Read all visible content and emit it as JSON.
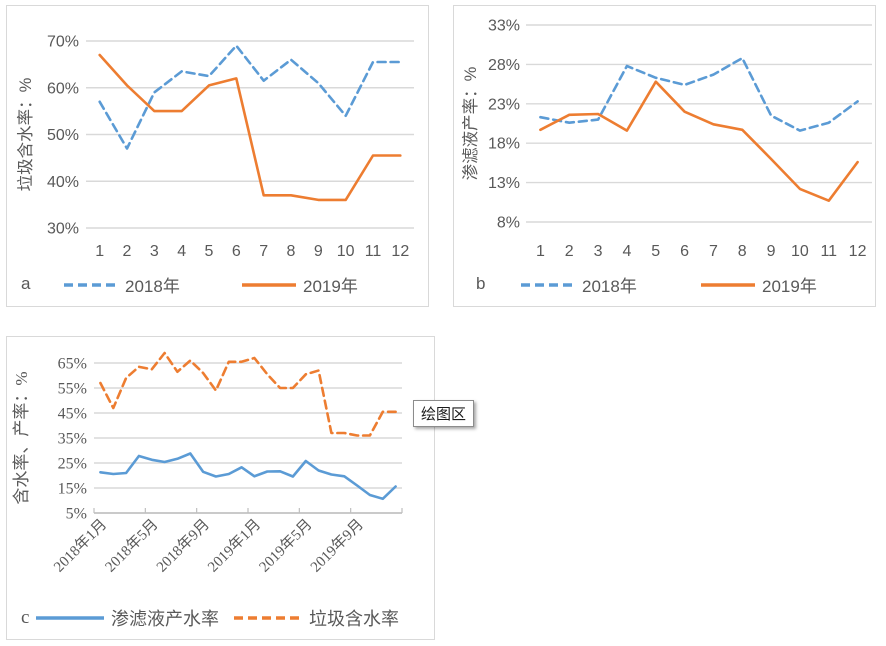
{
  "colors": {
    "blue": "#5B9BD5",
    "orange": "#ED7D31",
    "gridline": "#D9D9D9",
    "axis_line": "#BFBFBF",
    "axis_text": "#595959",
    "panel_border": "#D9D9D9",
    "tooltip_border": "#8C8C8C"
  },
  "tooltip": {
    "label": "绘图区"
  },
  "chart_data": [
    {
      "type": "line",
      "panel_label": "a",
      "title": "",
      "xlabel": "",
      "ylabel": "垃圾含水率：%",
      "x_ticks": [
        "1",
        "2",
        "3",
        "4",
        "5",
        "6",
        "7",
        "8",
        "9",
        "10",
        "11",
        "12"
      ],
      "x_tick_every": 1,
      "y_ticks": [
        {
          "v": 70,
          "label": "70%"
        },
        {
          "v": 60,
          "label": "60%"
        },
        {
          "v": 50,
          "label": "50%"
        },
        {
          "v": 40,
          "label": "40%"
        },
        {
          "v": 30,
          "label": "30%"
        }
      ],
      "ylim": [
        25,
        70
      ],
      "grid": true,
      "legend_position": "bottom",
      "series": [
        {
          "name": "2018年",
          "color_key": "blue",
          "dashed": true,
          "values": [
            57,
            47,
            59,
            63.5,
            62.5,
            69,
            61.5,
            66,
            61,
            54,
            65.5,
            65.5
          ]
        },
        {
          "name": "2019年",
          "color_key": "orange",
          "dashed": false,
          "values": [
            67,
            60.5,
            55,
            55,
            60.5,
            62,
            37,
            37,
            36,
            36,
            45.5,
            45.5
          ]
        }
      ]
    },
    {
      "type": "line",
      "panel_label": "b",
      "title": "",
      "xlabel": "",
      "ylabel": "渗滤液产率：%",
      "x_ticks": [
        "1",
        "2",
        "3",
        "4",
        "5",
        "6",
        "7",
        "8",
        "9",
        "10",
        "11",
        "12"
      ],
      "x_tick_every": 1,
      "y_ticks": [
        {
          "v": 33,
          "label": "33%"
        },
        {
          "v": 28,
          "label": "28%"
        },
        {
          "v": 23,
          "label": "23%"
        },
        {
          "v": 18,
          "label": "18%"
        },
        {
          "v": 13,
          "label": "13%"
        },
        {
          "v": 8,
          "label": "8%"
        }
      ],
      "ylim": [
        5.5,
        33
      ],
      "grid": true,
      "legend_position": "bottom",
      "series": [
        {
          "name": "2018年",
          "color_key": "blue",
          "dashed": true,
          "values": [
            21.3,
            20.6,
            21,
            27.8,
            26.3,
            25.4,
            26.7,
            28.8,
            21.5,
            19.6,
            20.6,
            23.3
          ]
        },
        {
          "name": "2019年",
          "color_key": "orange",
          "dashed": false,
          "values": [
            19.7,
            21.6,
            21.7,
            19.6,
            25.8,
            22,
            20.4,
            19.7,
            16,
            12.2,
            10.7,
            15.6
          ]
        }
      ]
    },
    {
      "type": "line",
      "panel_label": "c",
      "title": "",
      "xlabel": "",
      "ylabel": "含水率、产率：%",
      "x_ticks": [
        "2018年1月",
        "2018年5月",
        "2018年9月",
        "2019年1月",
        "2019年5月",
        "2019年9月"
      ],
      "x_tick_every": 4,
      "x_categories_count": 24,
      "y_ticks": [
        {
          "v": 65,
          "label": "65%"
        },
        {
          "v": 55,
          "label": "55%"
        },
        {
          "v": 45,
          "label": "45%"
        },
        {
          "v": 35,
          "label": "35%"
        },
        {
          "v": 25,
          "label": "25%"
        },
        {
          "v": 15,
          "label": "15%"
        },
        {
          "v": 5,
          "label": "5%"
        }
      ],
      "ylim": [
        5,
        70
      ],
      "grid": true,
      "legend_position": "bottom",
      "series": [
        {
          "name": "渗滤液产水率",
          "color_key": "blue",
          "dashed": false,
          "values": [
            21.3,
            20.6,
            21,
            27.8,
            26.3,
            25.4,
            26.7,
            28.8,
            21.5,
            19.6,
            20.6,
            23.3,
            19.7,
            21.6,
            21.7,
            19.6,
            25.8,
            22,
            20.4,
            19.7,
            16,
            12.2,
            10.7,
            15.6
          ]
        },
        {
          "name": "垃圾含水率",
          "color_key": "orange",
          "dashed": true,
          "values": [
            57,
            47,
            59,
            63.5,
            62.5,
            69,
            61.5,
            66,
            61,
            54,
            65.5,
            65.5,
            67,
            60.5,
            55,
            55,
            60.5,
            62,
            37,
            37,
            36,
            36,
            45.5,
            45.5
          ]
        }
      ]
    }
  ]
}
